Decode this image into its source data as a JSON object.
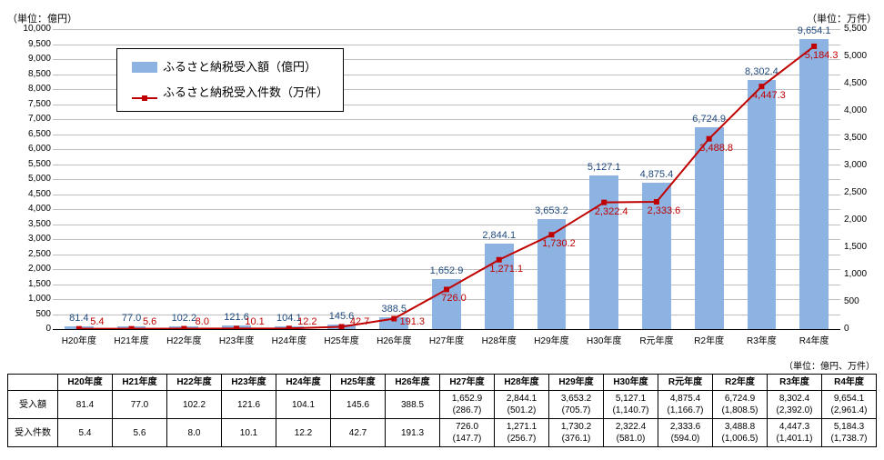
{
  "units": {
    "left_label": "（単位：億円）",
    "right_label": "（単位：万件）",
    "table_unit": "（単位：億円、万件）"
  },
  "legend": {
    "bar_label": "ふるさと納税受入額（億円）",
    "line_label": "ふるさと納税受入件数（万件）"
  },
  "style": {
    "bar_color": "#8db3e2",
    "line_color": "#c00000",
    "grid_color": "#bfbfbf",
    "bar_value_color": "#1f497d",
    "line_value_color": "#c00000",
    "background": "#ffffff",
    "bar_width": 0.55
  },
  "x_categories": [
    "H20年度",
    "H21年度",
    "H22年度",
    "H23年度",
    "H24年度",
    "H25年度",
    "H26年度",
    "H27年度",
    "H28年度",
    "H29年度",
    "H30年度",
    "R元年度",
    "R2年度",
    "R3年度",
    "R4年度"
  ],
  "bar_values": [
    81.4,
    77.0,
    102.2,
    121.6,
    104.1,
    145.6,
    388.5,
    1652.9,
    2844.1,
    3653.2,
    5127.1,
    4875.4,
    6724.9,
    8302.4,
    9654.1
  ],
  "bar_labels": [
    "81.4",
    "77.0",
    "102.2",
    "121.6",
    "104.1",
    "145.6",
    "388.5",
    "1,652.9",
    "2,844.1",
    "3,653.2",
    "5,127.1",
    "4,875.4",
    "6,724.9",
    "8,302.4",
    "9,654.1"
  ],
  "line_values": [
    5.4,
    5.6,
    8.0,
    10.1,
    12.2,
    42.7,
    191.3,
    726.0,
    1271.1,
    1730.2,
    2322.4,
    2333.6,
    3488.8,
    4447.3,
    5184.3
  ],
  "line_labels": [
    "5.4",
    "5.6",
    "8.0",
    "10.1",
    "12.2",
    "42.7",
    "191.3",
    "726.0",
    "1,271.1",
    "1,730.2",
    "2,322.4",
    "2,333.6",
    "3,488.8",
    "4,447.3",
    "5,184.3"
  ],
  "left_axis": {
    "min": 0,
    "max": 10000,
    "step": 500
  },
  "right_axis": {
    "min": 0,
    "max": 5500,
    "step": 500
  },
  "table": {
    "row_headers": [
      "受入額",
      "受入件数"
    ],
    "columns": [
      "H20年度",
      "H21年度",
      "H22年度",
      "H23年度",
      "H24年度",
      "H25年度",
      "H26年度",
      "H27年度",
      "H28年度",
      "H29年度",
      "H30年度",
      "R元年度",
      "R2年度",
      "R3年度",
      "R4年度"
    ],
    "amount_row": [
      "81.4",
      "77.0",
      "102.2",
      "121.6",
      "104.1",
      "145.6",
      "388.5",
      "1,652.9",
      "2,844.1",
      "3,653.2",
      "5,127.1",
      "4,875.4",
      "6,724.9",
      "8,302.4",
      "9,654.1"
    ],
    "amount_sub": [
      "",
      "",
      "",
      "",
      "",
      "",
      "",
      "(286.7)",
      "(501.2)",
      "(705.7)",
      "(1,140.7)",
      "(1,166.7)",
      "(1,808.5)",
      "(2,392.0)",
      "(2,961.4)"
    ],
    "count_row": [
      "5.4",
      "5.6",
      "8.0",
      "10.1",
      "12.2",
      "42.7",
      "191.3",
      "726.0",
      "1,271.1",
      "1,730.2",
      "2,322.4",
      "2,333.6",
      "3,488.8",
      "4,447.3",
      "5,184.3"
    ],
    "count_sub": [
      "",
      "",
      "",
      "",
      "",
      "",
      "",
      "(147.7)",
      "(256.7)",
      "(376.1)",
      "(581.0)",
      "(594.0)",
      "(1,006.5)",
      "(1,401.1)",
      "(1,738.7)"
    ]
  }
}
